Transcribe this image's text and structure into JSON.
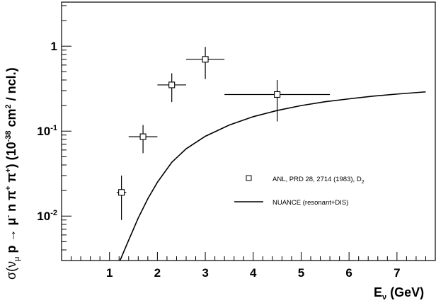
{
  "chart_data": {
    "type": "scatter",
    "x_scale": "linear",
    "y_scale": "log",
    "xlim": [
      0,
      7.8
    ],
    "ylim": [
      0.003,
      3.3
    ],
    "grid": false,
    "legend_position": "right",
    "x_ticks": [
      1,
      2,
      3,
      4,
      5,
      6,
      7
    ],
    "x_tick_labels": [
      "1",
      "2",
      "3",
      "4",
      "5",
      "6",
      "7"
    ],
    "y_ticks": [
      1,
      0.1,
      0.01
    ],
    "y_tick_labels": [
      {
        "base": "1",
        "exp": ""
      },
      {
        "base": "10",
        "exp": "-1"
      },
      {
        "base": "10",
        "exp": "-2"
      }
    ],
    "xlabel": {
      "main": "E",
      "sub": "ν",
      "unit": " (GeV)"
    },
    "ylabel": {
      "a": "σ(ν",
      "a_sub": "μ",
      "b": " p → μ",
      "b_sup": "-",
      "c": " n π",
      "c_sup": "+",
      "d": " π",
      "d_sup": "+",
      "e": ") (10",
      "e_sup": "-38",
      "f": " cm",
      "f_sup": "2",
      "g": " / ncl.)"
    },
    "series": [
      {
        "name": "ANL, PRD 28, 2714 (1983), D",
        "name_sub": "2",
        "kind": "points",
        "marker": "open-square",
        "points": [
          {
            "x": 1.25,
            "y": 0.019,
            "xerr": 0.1,
            "ylo": 0.009,
            "yhi": 0.03
          },
          {
            "x": 1.7,
            "y": 0.086,
            "xerr": 0.3,
            "ylo": 0.055,
            "yhi": 0.118
          },
          {
            "x": 2.3,
            "y": 0.35,
            "xerr": 0.3,
            "ylo": 0.22,
            "yhi": 0.48
          },
          {
            "x": 3.0,
            "y": 0.7,
            "xerr": 0.4,
            "ylo": 0.41,
            "yhi": 0.98
          },
          {
            "x": 4.5,
            "y": 0.27,
            "xerr": 1.1,
            "ylo": 0.13,
            "yhi": 0.4
          }
        ]
      },
      {
        "name": "NUANCE (resonant+DIS)",
        "kind": "line",
        "points": [
          {
            "x": 1.22,
            "y": 0.003
          },
          {
            "x": 1.4,
            "y": 0.0052
          },
          {
            "x": 1.6,
            "y": 0.0095
          },
          {
            "x": 1.8,
            "y": 0.016
          },
          {
            "x": 2.0,
            "y": 0.025
          },
          {
            "x": 2.3,
            "y": 0.043
          },
          {
            "x": 2.6,
            "y": 0.062
          },
          {
            "x": 3.0,
            "y": 0.087
          },
          {
            "x": 3.5,
            "y": 0.118
          },
          {
            "x": 4.0,
            "y": 0.148
          },
          {
            "x": 4.5,
            "y": 0.175
          },
          {
            "x": 5.0,
            "y": 0.2
          },
          {
            "x": 5.5,
            "y": 0.222
          },
          {
            "x": 6.0,
            "y": 0.24
          },
          {
            "x": 6.5,
            "y": 0.258
          },
          {
            "x": 7.0,
            "y": 0.273
          },
          {
            "x": 7.6,
            "y": 0.29
          }
        ]
      }
    ]
  }
}
